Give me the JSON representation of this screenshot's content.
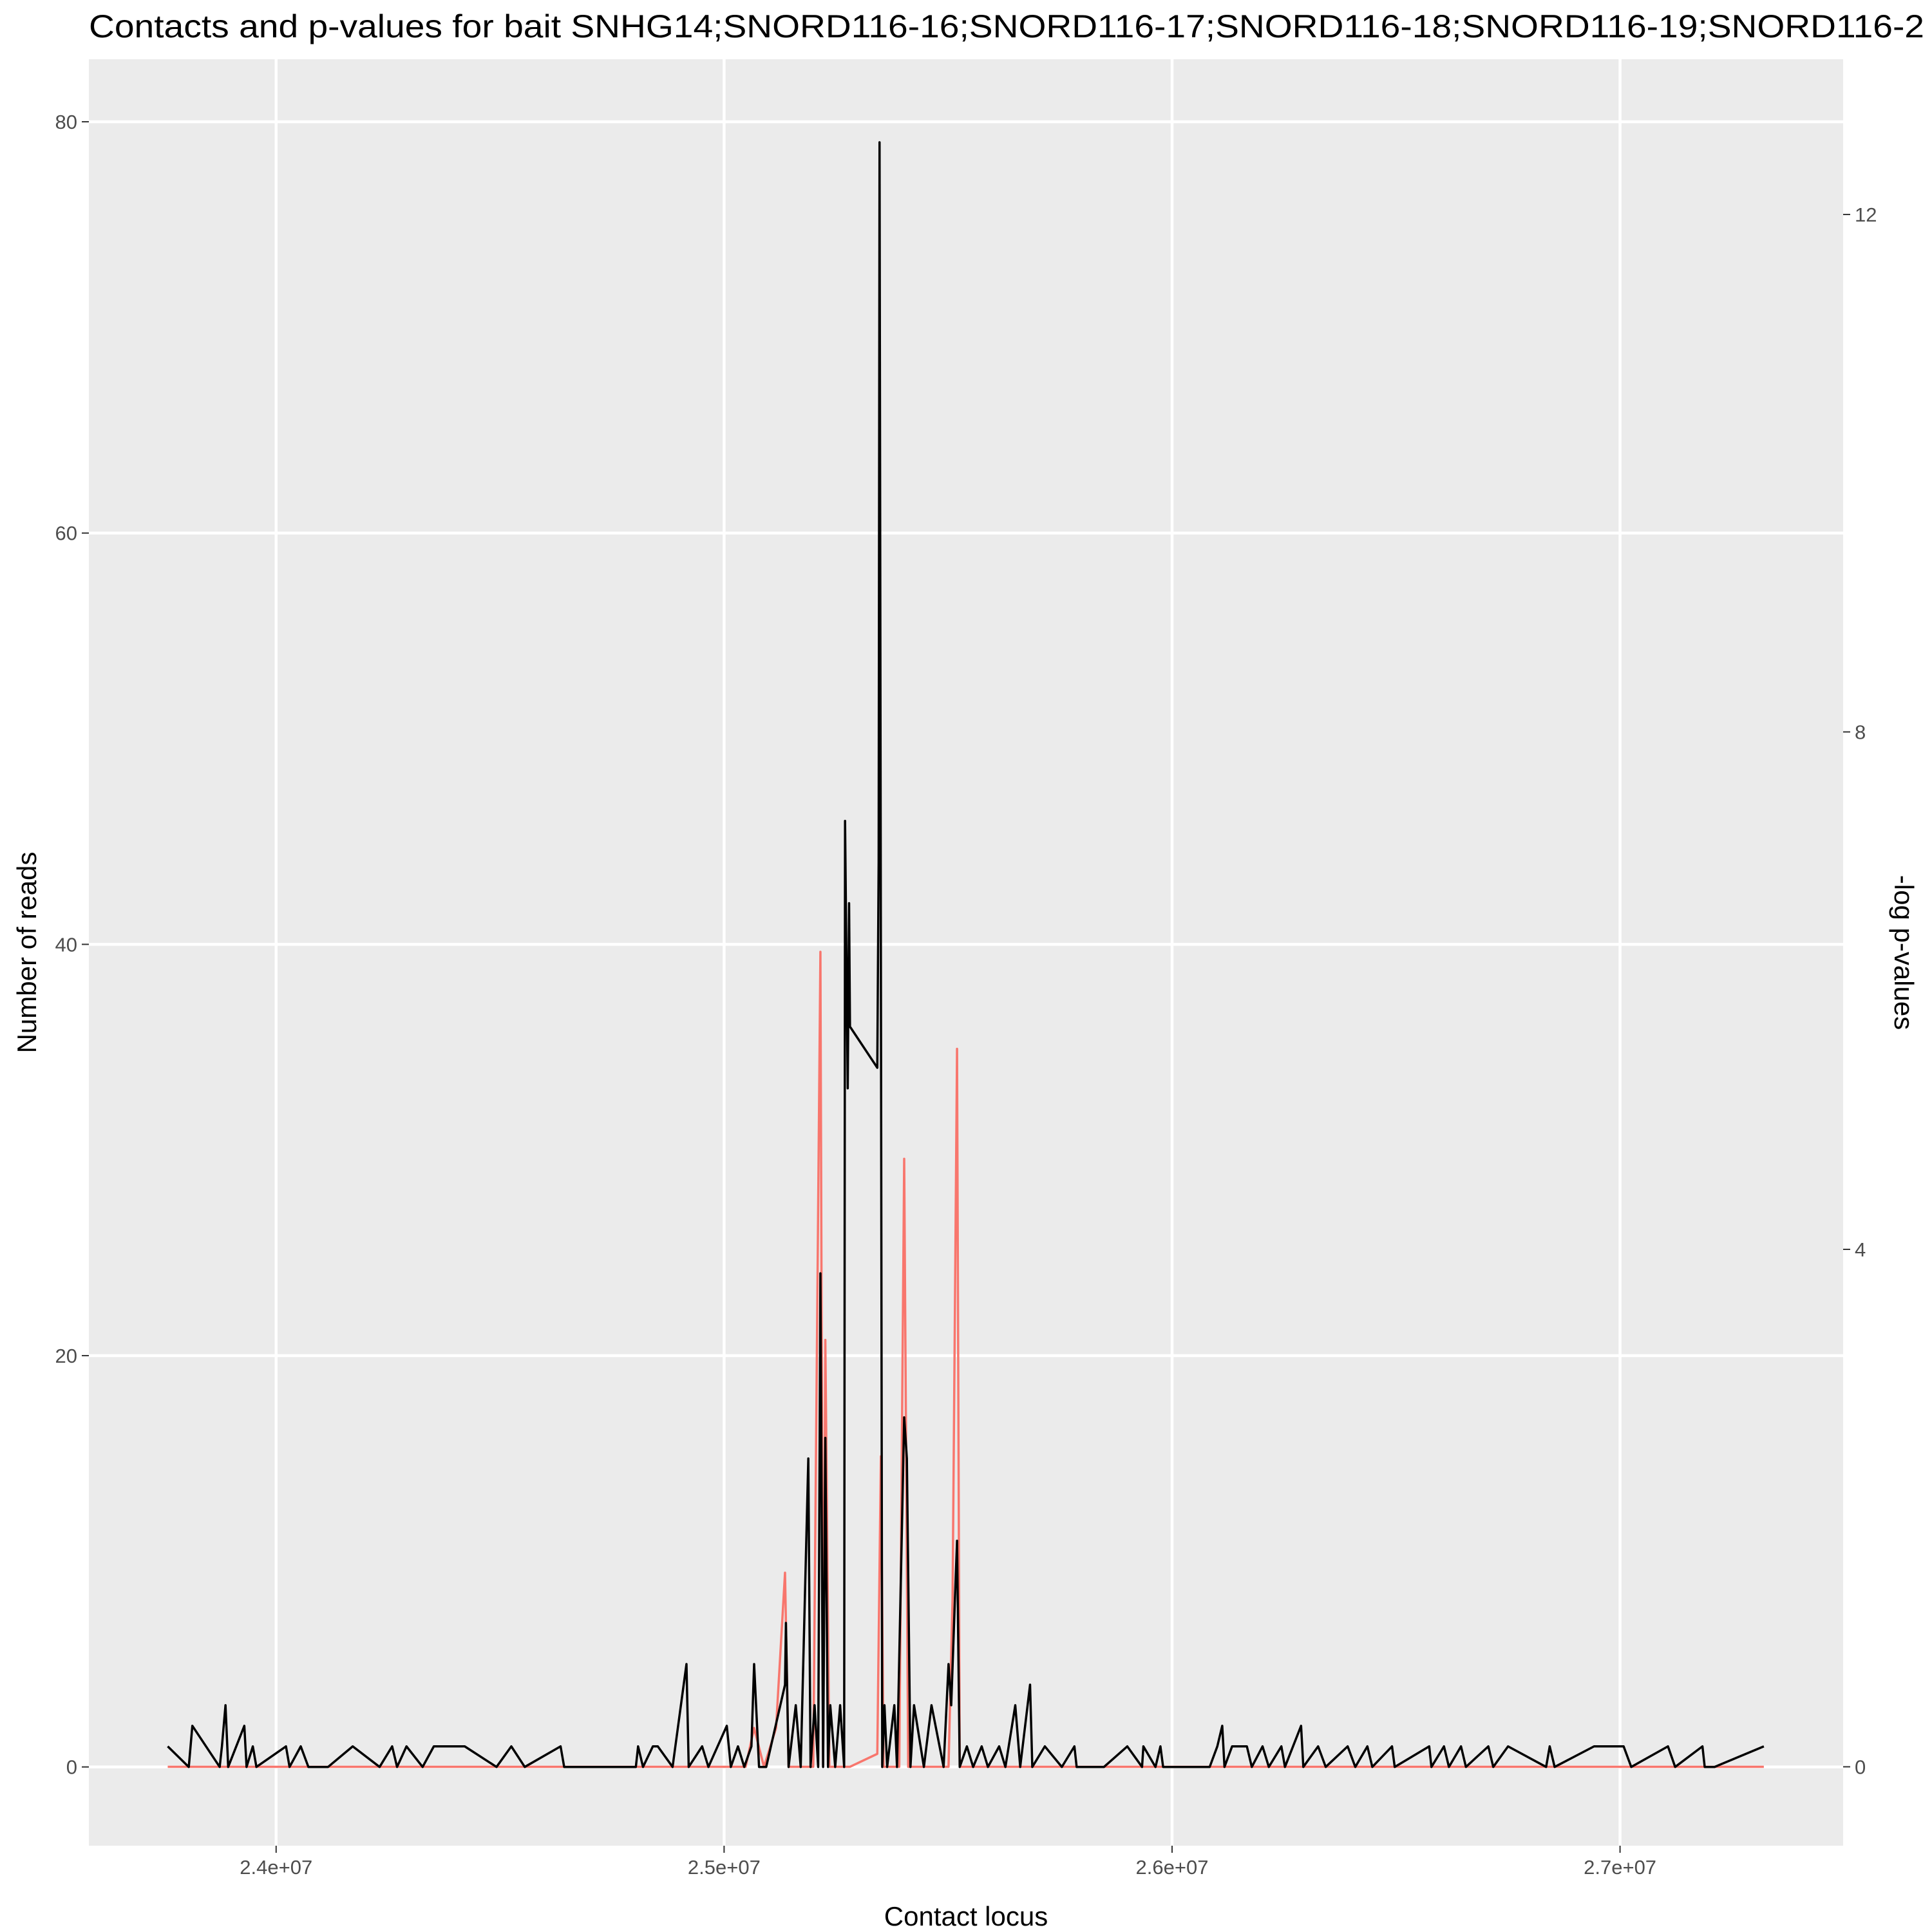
{
  "chart_data": {
    "type": "line",
    "title": "Contacts and p-values for bait SNHG14;SNORD116-16;SNORD116-17;SNORD116-18;SNORD116-19;SNORD116-2",
    "x_label": "Contact locus",
    "y_label": "Number of reads",
    "y2_label": "-log p-values",
    "xlim": [
      23582000,
      27498000
    ],
    "xticks": [
      {
        "value": 24000000,
        "label": "2.4e+07"
      },
      {
        "value": 25000000,
        "label": "2.5e+07"
      },
      {
        "value": 26000000,
        "label": "2.6e+07"
      },
      {
        "value": 27000000,
        "label": "2.7e+07"
      }
    ],
    "ylim": [
      -3.83,
      83.04
    ],
    "yticks": [
      0,
      20,
      40,
      60,
      80
    ],
    "y2lim": [
      -0.61,
      13.2
    ],
    "y2ticks": [
      0,
      4,
      8,
      12
    ],
    "grid": true,
    "background": "#EBEBEB",
    "series": [
      {
        "color": "#F8766D",
        "axis": "y2",
        "x": [
          23758000,
          25048000,
          25067000,
          25089000,
          25116000,
          25136000,
          25144000,
          25199000,
          25215000,
          25221000,
          25226000,
          25235000,
          25270000,
          25281000,
          25342000,
          25350000,
          25356000,
          25391000,
          25402000,
          25411000,
          25501000,
          25510000,
          25520000,
          25526000,
          27321000
        ],
        "values": [
          0,
          0,
          0.3,
          0,
          0.3,
          1.5,
          0,
          0,
          6.3,
          0,
          3.3,
          0,
          0,
          0,
          0.1,
          2.4,
          0,
          0,
          4.7,
          0,
          0,
          1.3,
          5.55,
          0,
          0
        ]
      },
      {
        "color": "#000000",
        "x": [
          23758000,
          23805000,
          23813000,
          23874000,
          23879000,
          23887000,
          23893000,
          23929000,
          23934000,
          23948000,
          23956000,
          24022000,
          24030000,
          24055000,
          24072000,
          24116000,
          24171000,
          24231000,
          24259000,
          24270000,
          24291000,
          24327000,
          24352000,
          24421000,
          24492000,
          24525000,
          24555000,
          24635000,
          24643000,
          24803000,
          24808000,
          24819000,
          24841000,
          24852000,
          24885000,
          24916000,
          24921000,
          24951000,
          24965000,
          25006000,
          25015000,
          25031000,
          25045000,
          25061000,
          25067000,
          25078000,
          25094000,
          25136000,
          25138000,
          25144000,
          25160000,
          25171000,
          25188000,
          25193000,
          25202000,
          25210000,
          25215000,
          25221000,
          25226000,
          25232000,
          25237000,
          25248000,
          25259000,
          25268000,
          25270000,
          25276000,
          25279000,
          25281000,
          25342000,
          25345000,
          25347000,
          25353000,
          25358000,
          25364000,
          25380000,
          25386000,
          25402000,
          25408000,
          25416000,
          25424000,
          25446000,
          25463000,
          25490000,
          25501000,
          25507000,
          25515000,
          25520000,
          25526000,
          25542000,
          25556000,
          25575000,
          25589000,
          25614000,
          25628000,
          25650000,
          25661000,
          25683000,
          25688000,
          25716000,
          25754000,
          25782000,
          25787000,
          25848000,
          25900000,
          25933000,
          25936000,
          25963000,
          25974000,
          25980000,
          26084000,
          26101000,
          26112000,
          26117000,
          26134000,
          26167000,
          26178000,
          26202000,
          26216000,
          26244000,
          26252000,
          26288000,
          26293000,
          26326000,
          26343000,
          26392000,
          26409000,
          26436000,
          26447000,
          26491000,
          26497000,
          26574000,
          26579000,
          26607000,
          26618000,
          26645000,
          26656000,
          26706000,
          26717000,
          26750000,
          26835000,
          26843000,
          26854000,
          26942000,
          27008000,
          27025000,
          27107000,
          27123000,
          27184000,
          27189000,
          27211000,
          27321000
        ],
        "values": [
          1,
          0,
          2,
          0,
          1,
          3,
          0,
          2,
          0,
          1,
          0,
          1,
          0,
          1,
          0,
          0,
          1,
          0,
          1,
          0,
          1,
          0,
          1,
          1,
          0,
          1,
          0,
          1,
          0,
          0,
          1,
          0,
          1,
          1,
          0,
          5,
          0,
          1,
          0,
          2,
          0,
          1,
          0,
          1,
          5,
          0,
          0,
          4,
          7,
          0,
          3,
          0,
          15,
          0,
          3,
          0,
          24,
          0,
          16,
          0,
          3,
          0,
          3,
          0,
          46,
          33,
          42,
          36,
          34,
          44,
          79,
          0,
          3,
          0,
          3,
          0,
          17,
          15,
          0,
          3,
          0,
          3,
          0,
          5,
          3,
          8,
          11,
          0,
          1,
          0,
          1,
          0,
          1,
          0,
          3,
          0,
          4,
          0,
          1,
          0,
          1,
          0,
          0,
          1,
          0,
          1,
          0,
          1,
          0,
          0,
          1,
          2,
          0,
          1,
          1,
          0,
          1,
          0,
          1,
          0,
          2,
          0,
          1,
          0,
          1,
          0,
          1,
          0,
          1,
          0,
          1,
          0,
          1,
          0,
          1,
          0,
          1,
          0,
          1,
          0,
          1,
          0,
          1,
          1,
          0,
          1,
          0,
          1,
          0,
          0,
          1
        ]
      }
    ]
  }
}
